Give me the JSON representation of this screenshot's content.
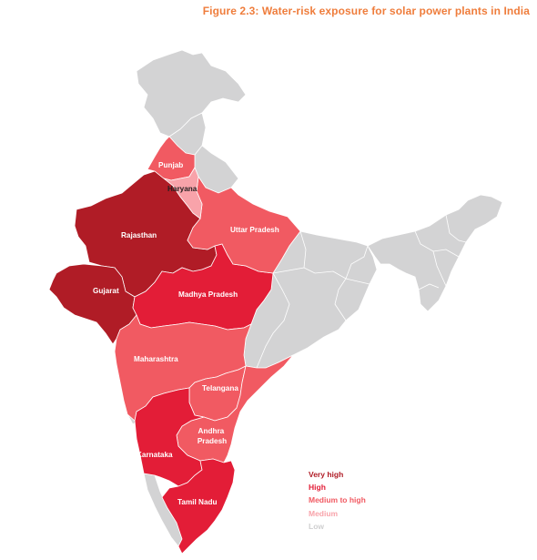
{
  "figure": {
    "title": "Figure 2.3: Water-risk exposure for solar power plants in India"
  },
  "colors": {
    "very_high": "#b01c26",
    "high": "#e31d37",
    "medium_to_high": "#f15a62",
    "medium": "#f8a3aa",
    "low": "#d3d3d4",
    "border": "#ffffff",
    "title": "#ef7d3c"
  },
  "legend": [
    {
      "label": "Very high",
      "color": "#b01c26"
    },
    {
      "label": "High",
      "color": "#e31d37"
    },
    {
      "label": "Medium to high",
      "color": "#f15a62"
    },
    {
      "label": "Medium",
      "color": "#f8a3aa"
    },
    {
      "label": "Low",
      "color": "#cfcfd0"
    }
  ],
  "states": [
    {
      "name": "Punjab",
      "risk": "Medium to high"
    },
    {
      "name": "Haryana",
      "risk": "Medium"
    },
    {
      "name": "Rajasthan",
      "risk": "Very high"
    },
    {
      "name": "Gujarat",
      "risk": "Very high"
    },
    {
      "name": "Uttar Pradesh",
      "risk": "Medium to high"
    },
    {
      "name": "Madhya Pradesh",
      "risk": "High"
    },
    {
      "name": "Maharashtra",
      "risk": "Medium to high"
    },
    {
      "name": "Telangana",
      "risk": "Medium to high"
    },
    {
      "name": "Andhra Pradesh",
      "risk": "Medium to high"
    },
    {
      "name": "Karnataka",
      "risk": "High"
    },
    {
      "name": "Tamil Nadu",
      "risk": "High"
    }
  ]
}
